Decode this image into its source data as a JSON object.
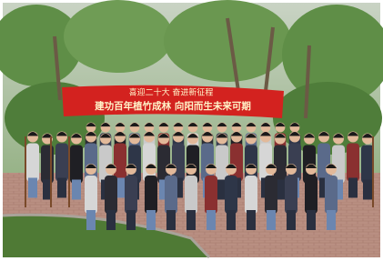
{
  "banner": {
    "line1": "喜迎二十大 奋进新征程",
    "line2": "建功百年植竹成林 向阳而生未来可期"
  }
}
